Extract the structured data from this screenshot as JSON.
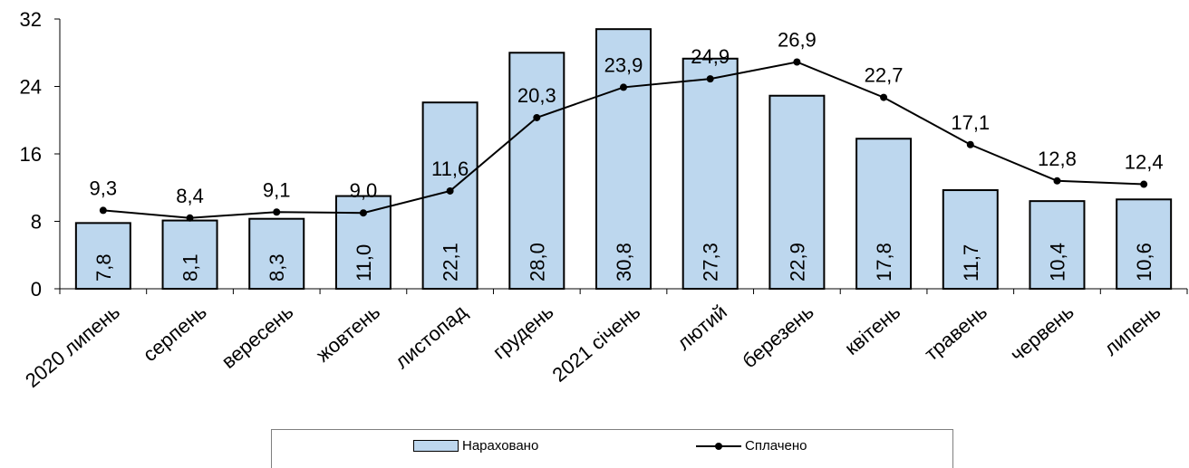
{
  "chart_data": {
    "type": "bar",
    "categories": [
      "2020 липень",
      "серпень",
      "вересень",
      "жовтень",
      "листопад",
      "грудень",
      "2021 січень",
      "лютий",
      "березень",
      "квітень",
      "травень",
      "червень",
      "липень"
    ],
    "y_ticks": [
      "0",
      "8",
      "16",
      "24",
      "32"
    ],
    "ylim": [
      0,
      32
    ],
    "series": [
      {
        "name": "Нараховано",
        "kind": "bar",
        "color": "#bdd7ee",
        "values": [
          7.8,
          8.1,
          8.3,
          11.0,
          22.1,
          28.0,
          30.8,
          27.3,
          22.9,
          17.8,
          11.7,
          10.4,
          10.6
        ],
        "labels": [
          "7,8",
          "8,1",
          "8,3",
          "11,0",
          "22,1",
          "28,0",
          "30,8",
          "27,3",
          "22,9",
          "17,8",
          "11,7",
          "10,4",
          "10,6"
        ]
      },
      {
        "name": "Сплачено",
        "kind": "line",
        "color": "#000000",
        "values": [
          9.3,
          8.4,
          9.1,
          9.0,
          11.6,
          20.3,
          23.9,
          24.9,
          26.9,
          22.7,
          17.1,
          12.8,
          12.4
        ],
        "labels": [
          "9,3",
          "8,4",
          "9,1",
          "9,0",
          "11,6",
          "20,3",
          "23,9",
          "24,9",
          "26,9",
          "22,7",
          "17,1",
          "12,8",
          "12,4"
        ]
      }
    ],
    "legend_position": "bottom",
    "grid": false
  }
}
